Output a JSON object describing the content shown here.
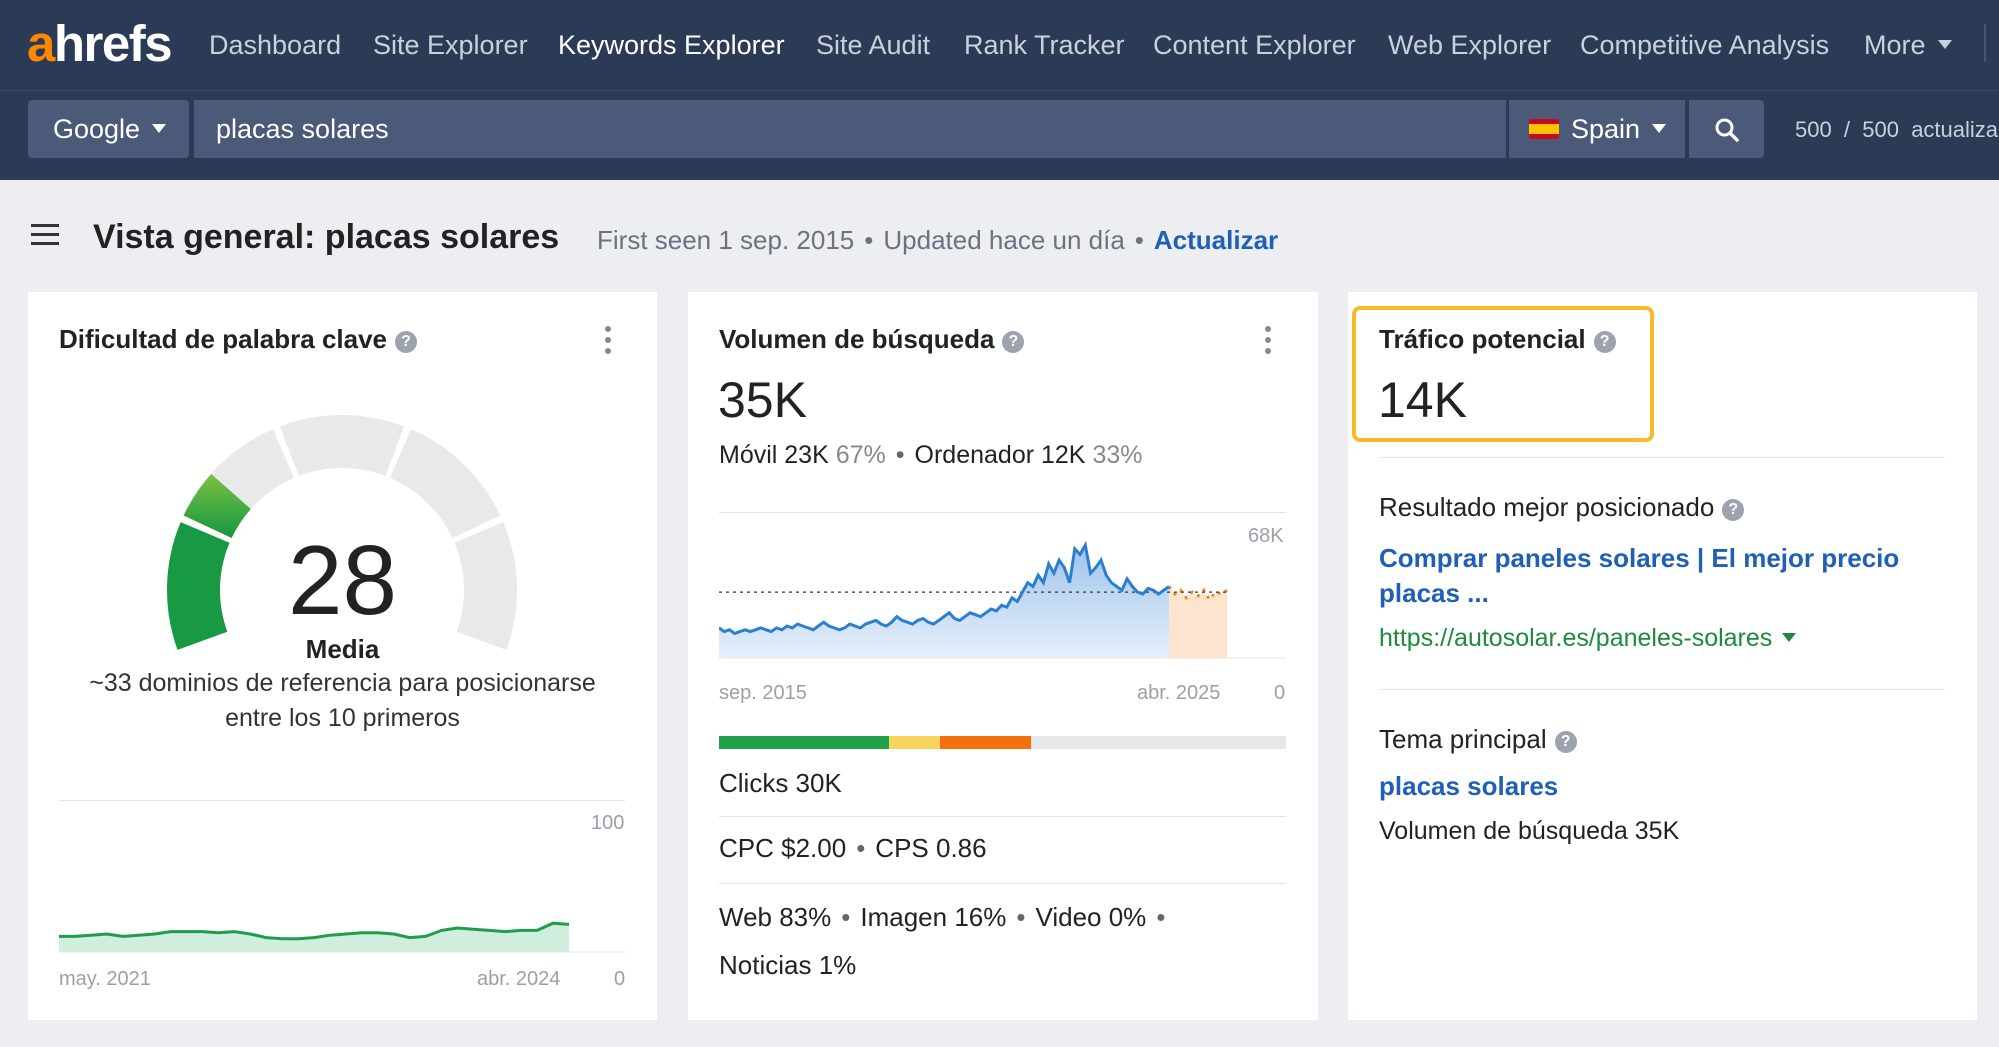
{
  "logo": {
    "a": "a",
    "rest": "hrefs"
  },
  "nav": {
    "items": [
      {
        "label": "Dashboard"
      },
      {
        "label": "Site Explorer"
      },
      {
        "label": "Keywords Explorer"
      },
      {
        "label": "Site Audit"
      },
      {
        "label": "Rank Tracker"
      },
      {
        "label": "Content Explorer"
      },
      {
        "label": "Web Explorer"
      },
      {
        "label": "Competitive Analysis"
      },
      {
        "label": "More"
      }
    ],
    "active": "Keywords Explorer"
  },
  "search": {
    "engine": "Google",
    "query": "placas solares",
    "country": "Spain",
    "credits": "500  /  500  actualiza"
  },
  "header": {
    "title": "Vista general: placas solares",
    "first_seen": "First seen 1 sep. 2015",
    "updated": "Updated hace un día",
    "refresh_link": "Actualizar"
  },
  "kd_card": {
    "title": "Dificultad de palabra clave",
    "help": "?",
    "value": "28",
    "label": "Media",
    "description": "~33 dominios de referencia para posicionarse entre los 10 primeros",
    "history": {
      "x_start": "may. 2021",
      "x_end": "abr. 2024",
      "y_max": "100",
      "y_min": "0",
      "values": [
        13,
        13,
        14,
        15,
        13,
        14,
        15,
        17,
        17,
        17,
        16,
        17,
        15,
        12,
        11,
        11,
        12,
        14,
        15,
        16,
        16,
        15,
        12,
        13,
        18,
        20,
        19,
        18,
        17,
        18,
        18,
        24,
        23
      ]
    }
  },
  "volume_card": {
    "title": "Volumen de búsqueda",
    "help": "?",
    "value": "35K",
    "mobile_label": "Móvil 23K",
    "mobile_pct": "67%",
    "desktop_label": "Ordenador 12K",
    "desktop_pct": "33%",
    "chart": {
      "y_max": "68K",
      "y_min": "0",
      "x_start": "sep. 2015",
      "x_end": "abr. 2025",
      "average": 35,
      "values": [
        16,
        14,
        15,
        13,
        14,
        15,
        14,
        15,
        16,
        15,
        14,
        16,
        15,
        17,
        16,
        18,
        17,
        16,
        15,
        17,
        19,
        17,
        16,
        15,
        16,
        18,
        17,
        16,
        18,
        19,
        20,
        18,
        17,
        19,
        22,
        20,
        19,
        18,
        20,
        21,
        19,
        18,
        20,
        22,
        24,
        21,
        20,
        22,
        24,
        23,
        22,
        24,
        26,
        25,
        28,
        27,
        32,
        30,
        35,
        40,
        38,
        44,
        40,
        50,
        45,
        52,
        48,
        40,
        58,
        55,
        60,
        45,
        48,
        52,
        44,
        40,
        38,
        36,
        42,
        38,
        35,
        34,
        37,
        36,
        34,
        36,
        38
      ],
      "forecast": [
        38,
        34,
        36,
        32,
        35,
        33,
        36,
        31,
        35,
        34,
        36
      ]
    },
    "click_bar": [
      {
        "color": "#21a24a",
        "share": 30
      },
      {
        "color": "#f9d45c",
        "share": 9
      },
      {
        "color": "#f3700f",
        "share": 16
      },
      {
        "color": "#e7e7e7",
        "share": 45
      }
    ],
    "clicks": "Clicks 30K",
    "cpc": "CPC $2.00",
    "cps": "CPS 0.86",
    "web": "Web 83%",
    "image": "Imagen 16%",
    "video": "Video 0%",
    "news": "Noticias 1%"
  },
  "traffic_card": {
    "title": "Tráfico potencial",
    "help": "?",
    "value": "14K",
    "top_result_label": "Resultado mejor posicionado",
    "top_result_title": "Comprar paneles solares | El mejor precio placas ...",
    "top_result_url": "https://autosolar.es/paneles-solares",
    "topic_label": "Tema principal",
    "topic_link": "placas solares",
    "topic_volume": "Volumen de búsqueda 35K"
  },
  "colors": {
    "nav_bg": "#2b3a55",
    "accent_orange": "#ff8800",
    "link_blue": "#1f5fb5",
    "url_green": "#1e8a3c",
    "highlight": "#f7b928"
  }
}
